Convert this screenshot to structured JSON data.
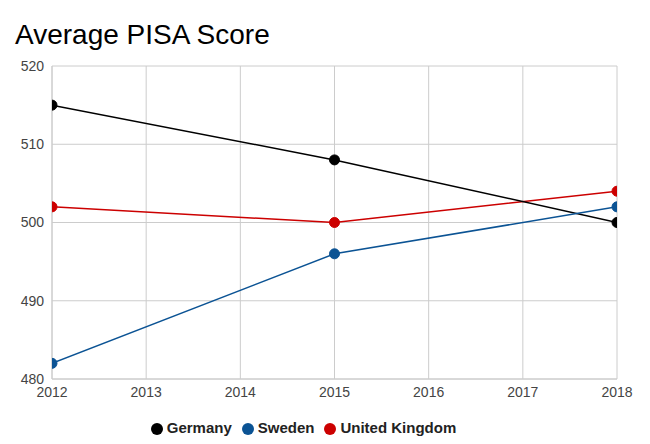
{
  "chart_data": {
    "type": "line",
    "title": "Average PISA Score",
    "x": [
      2012,
      2015,
      2018
    ],
    "series": [
      {
        "name": "United Kingdom",
        "color": "#cc0000",
        "values": [
          502,
          500,
          504
        ]
      },
      {
        "name": "Germany",
        "color": "#000000",
        "values": [
          515,
          508,
          500
        ]
      },
      {
        "name": "Sweden",
        "color": "#0b5394",
        "values": [
          482,
          496,
          502
        ]
      }
    ],
    "xlim": [
      2012,
      2018
    ],
    "xticks": [
      2012,
      2013,
      2014,
      2015,
      2016,
      2017,
      2018
    ],
    "ylim": [
      480,
      520
    ],
    "yticks": [
      480,
      490,
      500,
      510,
      520
    ],
    "grid": true,
    "legend": "bottom",
    "marker": "circle"
  }
}
